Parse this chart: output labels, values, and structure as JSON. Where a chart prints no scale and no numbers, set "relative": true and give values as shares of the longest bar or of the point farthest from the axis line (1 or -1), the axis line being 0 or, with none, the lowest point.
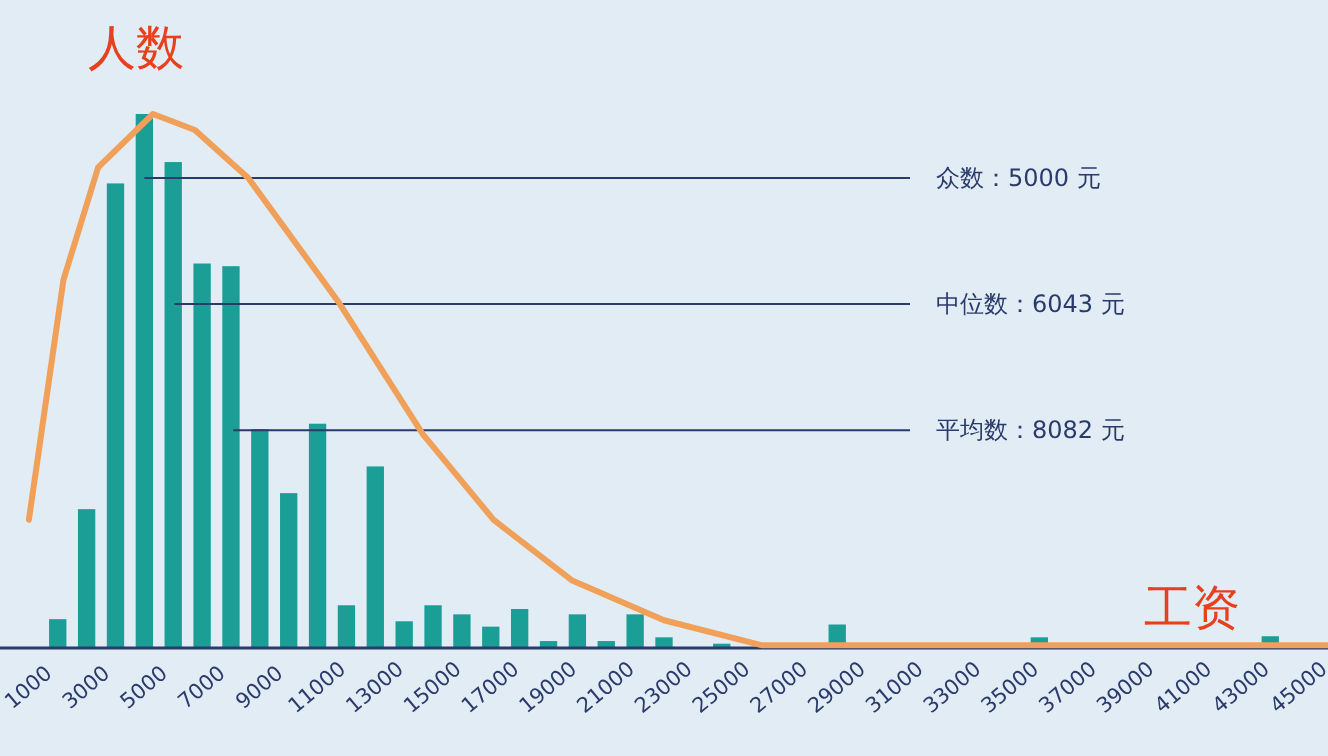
{
  "chart_data": {
    "type": "bar",
    "relative": true,
    "ylabel": "人数",
    "xlabel": "工资",
    "xlim": [
      0,
      46000
    ],
    "xticks": [
      1000,
      3000,
      5000,
      7000,
      9000,
      11000,
      13000,
      15000,
      17000,
      19000,
      21000,
      23000,
      25000,
      27000,
      29000,
      31000,
      33000,
      35000,
      37000,
      39000,
      41000,
      43000,
      45000
    ],
    "series": [
      {
        "color": "#1a9e96",
        "x": [
          2000,
          3000,
          4000,
          5000,
          6000,
          7000,
          8000,
          9000,
          10000,
          11000,
          12000,
          13000,
          14000,
          15000,
          16000,
          17000,
          18000,
          19000,
          20000,
          21000,
          22000,
          23000,
          25000,
          29000,
          36000,
          44000
        ],
        "values": [
          0.054,
          0.26,
          0.87,
          1,
          0.91,
          0.72,
          0.715,
          0.41,
          0.29,
          0.42,
          0.08,
          0.34,
          0.05,
          0.08,
          0.063,
          0.04,
          0.073,
          0.013,
          0.063,
          0.013,
          0.063,
          0.02,
          0.008,
          0.044,
          0.02,
          0.022
        ]
      },
      {
        "type": "line",
        "color": "#f0a058",
        "x": [
          1000,
          2200,
          3400,
          5300,
          6750,
          8600,
          11700,
          14650,
          17100,
          19800,
          23000,
          26400,
          46000
        ],
        "values": [
          0.24,
          0.69,
          0.9,
          1,
          0.97,
          0.88,
          0.65,
          0.4,
          0.24,
          0.127,
          0.052,
          0.005,
          0.005
        ]
      }
    ],
    "annotations": [
      {
        "text": "众数：5000 元",
        "x": 5000,
        "y": 0.88
      },
      {
        "text": "中位数：6043 元",
        "x": 6043,
        "y": 0.644
      },
      {
        "text": "平均数：8082 元",
        "x": 8082,
        "y": 0.408
      }
    ]
  }
}
